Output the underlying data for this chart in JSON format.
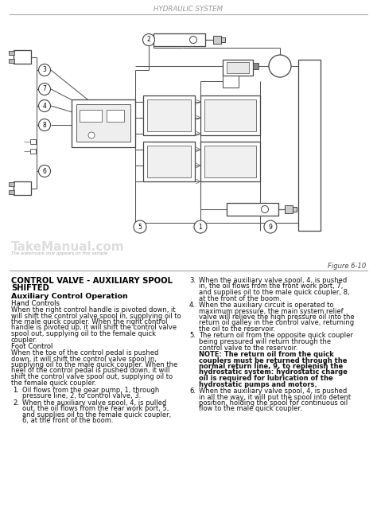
{
  "page_title": "HYDRAULIC SYSTEM",
  "figure_label": "Figure 6-10",
  "watermark_text": "TakeManual.com",
  "watermark_sub": "The watermark only appears on this sample",
  "bg_color": "#ffffff",
  "title_color": "#999999",
  "heading1_line1": "CONTROL VALVE - AUXILIARY SPOOL",
  "heading1_line2": "SHIFTED",
  "heading2": "Auxiliary Control Operation",
  "subhead1": "Hand Controls",
  "para1_lines": [
    "When the right control handle is pivoted down, it",
    "will shift the control valve spool in, supplying oil to",
    "the male quick coupler. When the right control",
    "handle is pivoted up, it will shift the control valve",
    "spool out, supplying oil to the female quick",
    "coupler."
  ],
  "subhead2": "Foot Control",
  "para2_lines": [
    "When the toe of the control pedal is pushed",
    "down, it will shift the control valve spool in,",
    "supplying oil to the male quick coupler. When the",
    "heel of the control pedal is pushed down, it will",
    "shift the control valve spool out, supplying oil to",
    "the female quick coupler."
  ],
  "item1_lines": [
    "Oil flows from the gear pump, 1, through",
    "pressure line, 2, to control valve, 3."
  ],
  "item2_lines": [
    "When the auxiliary valve spool, 4, is pulled",
    "out, the oil flows from the rear work port, 5,",
    "and supplies oil to the female quick coupler,",
    "6, at the front of the boom."
  ],
  "item3_lines": [
    "When the auxiliary valve spool, 4, is pushed",
    "in, the oil flows from the front work port, 7,",
    "and supplies oil to the male quick coupler, 8,",
    "at the front of the boom."
  ],
  "item4_lines": [
    "When the auxiliary circuit is operated to",
    "maximum pressure, the main system relief",
    "valve will relieve the high pressure oil into the",
    "return oil galley in the control valve, returning",
    "the oil to the reservoir."
  ],
  "item5_lines": [
    "The return oil from the opposite quick coupler",
    "being pressured will return through the",
    "control valve to the reservoir."
  ],
  "note_lines": [
    "NOTE: The return oil from the quick",
    "couplers must be returned through the",
    "normal return line, 9, to replenish the",
    "hydrostatic system: hydrostatic charge",
    "oil is required for lubrication of the",
    "hydrostatic pumps and motors."
  ],
  "item6_lines": [
    "When the auxiliary valve spool, 4, is pushed",
    "in all the way, it will put the spool into detent",
    "position, holding the spool for continuous oil",
    "flow to the male quick coupler."
  ]
}
